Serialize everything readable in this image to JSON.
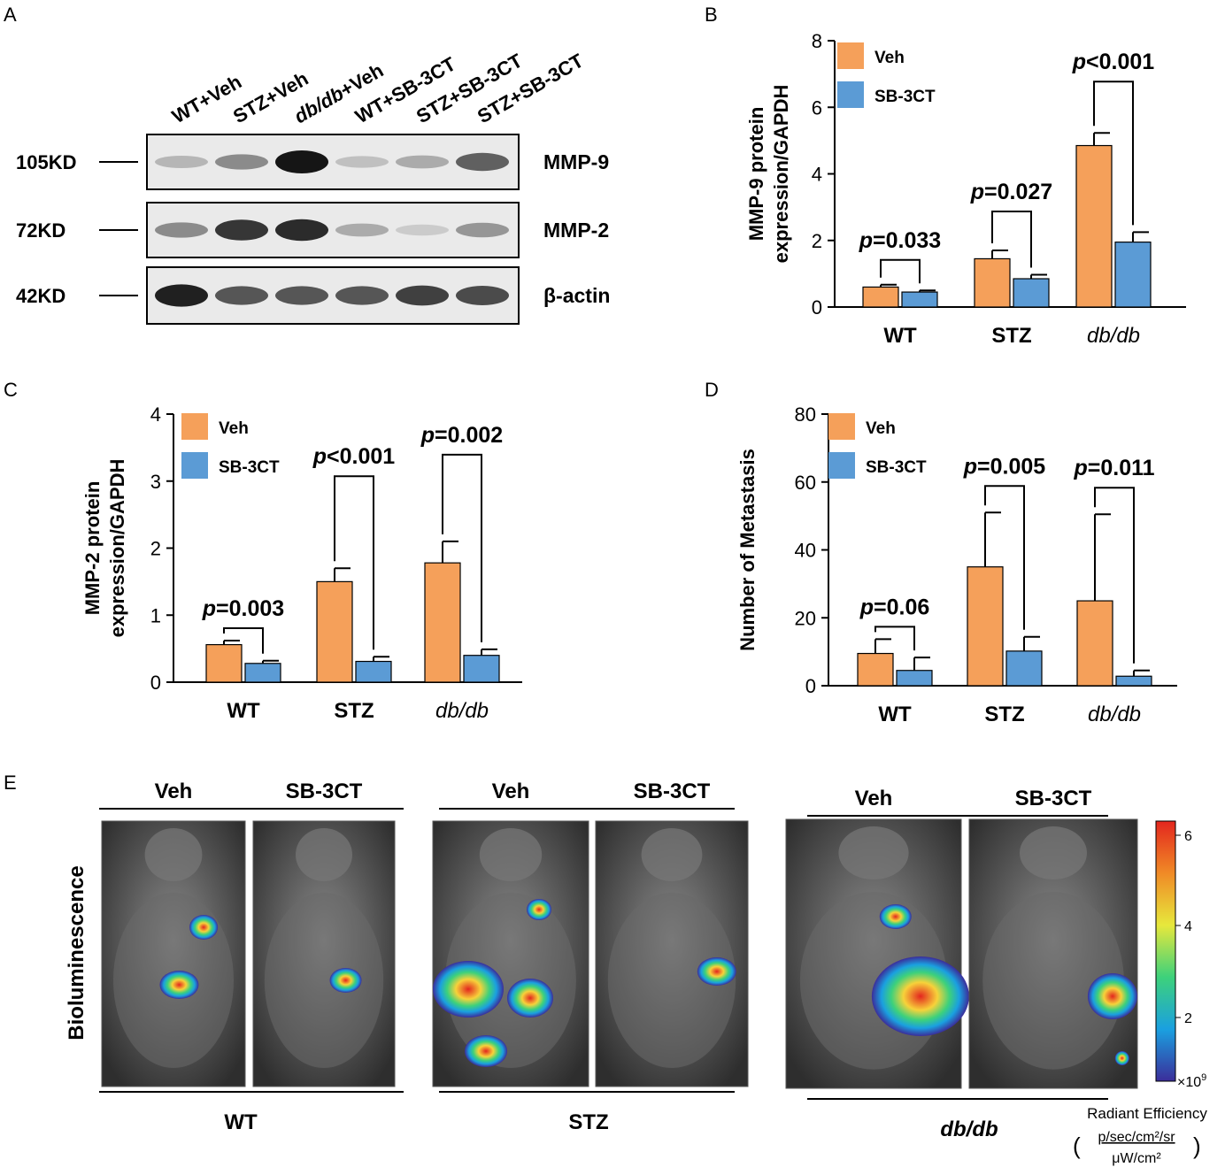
{
  "panels": {
    "a": "A",
    "b": "B",
    "c": "C",
    "d": "D",
    "e": "E"
  },
  "blot": {
    "lanes": [
      "WT+Veh",
      "STZ+Veh",
      "db/db+Veh",
      "WT+SB-3CT",
      "STZ+SB-3CT",
      "STZ+SB-3CT"
    ],
    "rows": [
      {
        "weight": "105KD",
        "protein": "MMP-9",
        "intensity": [
          0.25,
          0.45,
          1.0,
          0.2,
          0.3,
          0.65
        ]
      },
      {
        "weight": "72KD",
        "protein": "MMP-2",
        "intensity": [
          0.45,
          0.85,
          0.9,
          0.3,
          0.15,
          0.4
        ]
      },
      {
        "weight": "42KD",
        "protein": "β-actin",
        "intensity": [
          0.95,
          0.7,
          0.7,
          0.7,
          0.8,
          0.75
        ]
      }
    ]
  },
  "legend": {
    "veh": "Veh",
    "sb": "SB-3CT"
  },
  "colors": {
    "veh": "#f5a05a",
    "sb": "#5b9bd5"
  },
  "chart_data": [
    {
      "panel": "B",
      "type": "bar",
      "categories": [
        "WT",
        "STZ",
        "db/db"
      ],
      "ylabel": [
        "MMP-9 protein",
        "expression/GAPDH"
      ],
      "ylim": [
        0,
        8
      ],
      "yticks": [
        0,
        2,
        4,
        6,
        8
      ],
      "series": [
        {
          "name": "Veh",
          "values": [
            0.6,
            1.45,
            4.85
          ],
          "errors": [
            0.07,
            0.25,
            0.38
          ]
        },
        {
          "name": "SB-3CT",
          "values": [
            0.45,
            0.85,
            1.95
          ],
          "errors": [
            0.05,
            0.12,
            0.3
          ]
        }
      ],
      "annotations": [
        {
          "category": 0,
          "p": "p",
          "rest": "=0.033"
        },
        {
          "category": 1,
          "p": "p",
          "rest": "=0.027"
        },
        {
          "category": 2,
          "p": "p",
          "rest": "<0.001"
        }
      ]
    },
    {
      "panel": "C",
      "type": "bar",
      "categories": [
        "WT",
        "STZ",
        "db/db"
      ],
      "ylabel": [
        "MMP-2 protein",
        "expression/GAPDH"
      ],
      "ylim": [
        0,
        4
      ],
      "yticks": [
        0,
        1,
        2,
        3,
        4
      ],
      "series": [
        {
          "name": "Veh",
          "values": [
            0.56,
            1.5,
            1.78
          ],
          "errors": [
            0.06,
            0.2,
            0.32
          ]
        },
        {
          "name": "SB-3CT",
          "values": [
            0.28,
            0.31,
            0.4
          ],
          "errors": [
            0.04,
            0.07,
            0.09
          ]
        }
      ],
      "annotations": [
        {
          "category": 0,
          "p": "p",
          "rest": "=0.003"
        },
        {
          "category": 1,
          "p": "p",
          "rest": "<0.001"
        },
        {
          "category": 2,
          "p": "p",
          "rest": "=0.002"
        }
      ]
    },
    {
      "panel": "D",
      "type": "bar",
      "categories": [
        "WT",
        "STZ",
        "db/db"
      ],
      "ylabel": [
        "Number of Metastasis"
      ],
      "ylim": [
        0,
        80
      ],
      "yticks": [
        0,
        20,
        40,
        60,
        80
      ],
      "series": [
        {
          "name": "Veh",
          "values": [
            9.5,
            35,
            25
          ],
          "errors": [
            4.2,
            16,
            25.5
          ]
        },
        {
          "name": "SB-3CT",
          "values": [
            4.5,
            10.2,
            2.8
          ],
          "errors": [
            3.8,
            4.2,
            1.7
          ]
        }
      ],
      "annotations": [
        {
          "category": 0,
          "p": "p",
          "rest": "=0.06"
        },
        {
          "category": 1,
          "p": "p",
          "rest": "=0.005"
        },
        {
          "category": 2,
          "p": "p",
          "rest": "=0.011"
        }
      ]
    }
  ],
  "imaging": {
    "ylabel": "Bioluminescence",
    "groups": [
      {
        "name": "WT",
        "veh": "Veh",
        "sb": "SB-3CT"
      },
      {
        "name": "STZ",
        "veh": "Veh",
        "sb": "SB-3CT"
      },
      {
        "name": "db/db",
        "veh": "Veh",
        "sb": "SB-3CT"
      }
    ],
    "colorbar": {
      "ticks": [
        "6",
        "4",
        "2"
      ],
      "exponent": "×10",
      "exponent_power": "9",
      "title": "Radiant Efficiency",
      "unit_num": "p/sec/cm²/sr",
      "unit_den": "μW/cm²"
    }
  }
}
